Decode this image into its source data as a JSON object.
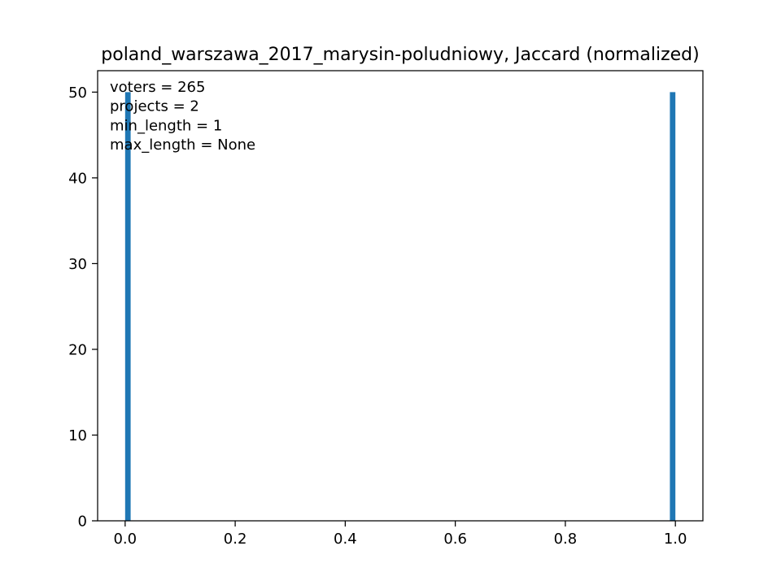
{
  "chart_data": {
    "type": "bar",
    "title": "poland_warszawa_2017_marysin-poludniowy, Jaccard (normalized)",
    "xlabel": "",
    "ylabel": "",
    "xlim": [
      -0.05,
      1.05
    ],
    "ylim": [
      0,
      52.5
    ],
    "x_ticks": [
      0.0,
      0.2,
      0.4,
      0.6,
      0.8,
      1.0
    ],
    "x_tick_labels": [
      "0.0",
      "0.2",
      "0.4",
      "0.6",
      "0.8",
      "1.0"
    ],
    "y_ticks": [
      0,
      10,
      20,
      30,
      40,
      50
    ],
    "y_tick_labels": [
      "0",
      "10",
      "20",
      "30",
      "40",
      "50"
    ],
    "bin_width": 0.01,
    "bars": [
      {
        "x_start": 0.0,
        "x_end": 0.01,
        "value": 50
      },
      {
        "x_start": 0.99,
        "x_end": 1.0,
        "value": 50
      }
    ],
    "bar_color": "#1f77b4",
    "grid": false,
    "annotations": [
      "voters = 265",
      "projects = 2",
      "min_length = 1",
      "max_length = None"
    ]
  }
}
